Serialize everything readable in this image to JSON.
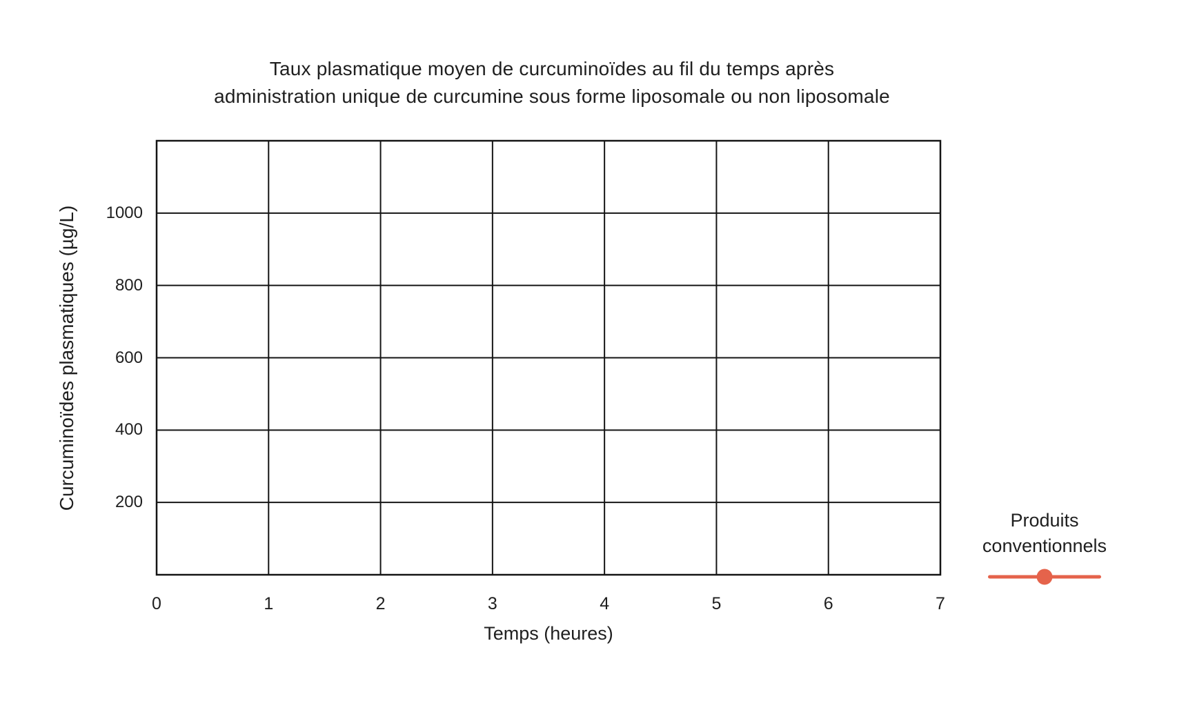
{
  "title": {
    "line1": "Taux plasmatique moyen de curcuminoïdes au fil du temps après",
    "line2": "administration unique de curcumine sous forme liposomale ou non liposomale"
  },
  "chart_data": {
    "type": "line",
    "title": "Taux plasmatique moyen de curcuminoïdes au fil du temps après administration unique de curcumine sous forme liposomale ou non liposomale",
    "xlabel": "Temps (heures)",
    "ylabel": "Curcuminoïdes plasmatiques (µg/L)",
    "xlim": [
      0,
      7
    ],
    "ylim": [
      0,
      1200
    ],
    "xticks": [
      0,
      1,
      2,
      3,
      4,
      5,
      6,
      7
    ],
    "ytick_step": 200,
    "ytick_labels": [
      200,
      400,
      600,
      800,
      1000
    ],
    "grid": true,
    "frame": true,
    "legend_position": "bottom-right-outside",
    "series": [
      {
        "name": "Produits conventionnels",
        "color": "#E5634B",
        "marker": "circle",
        "x": [],
        "y": []
      }
    ]
  },
  "legend": {
    "label_line1": "Produits",
    "label_line2": "conventionnels",
    "series_color": "#E5634B"
  },
  "colors": {
    "background": "#FFFFFF",
    "text": "#1F1F1F",
    "grid": "#141414",
    "accent": "#E5634B"
  }
}
